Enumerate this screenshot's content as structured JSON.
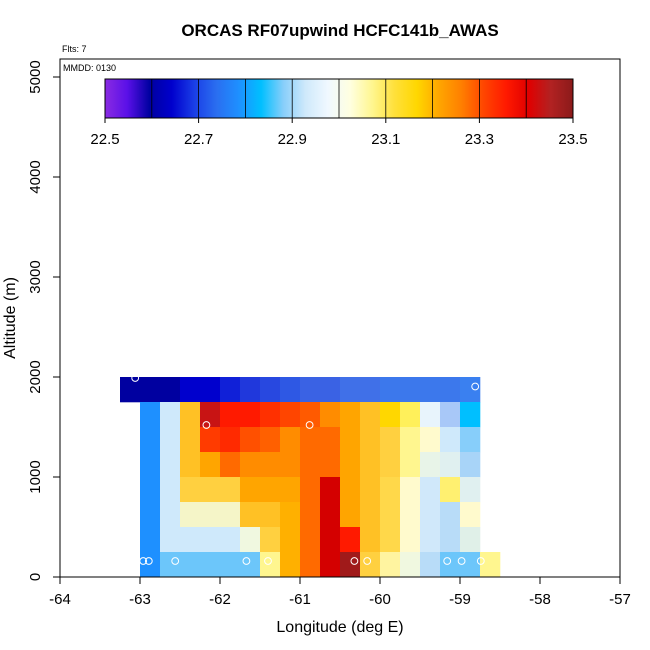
{
  "chart_data": {
    "type": "heatmap",
    "title": "ORCAS RF07upwind HCFC141b_AWAS",
    "xlabel": "Longitude (deg E)",
    "ylabel": "Altitude (m)",
    "xlim": [
      -64,
      -57
    ],
    "ylim": [
      0,
      5200
    ],
    "x_ticks": [
      -64,
      -63,
      -62,
      -61,
      -60,
      -59,
      -58,
      -57
    ],
    "y_ticks": [
      0,
      1000,
      2000,
      3000,
      4000,
      5000
    ],
    "annotations": {
      "flights": "Flts: 7",
      "date": "MMDD: 0130"
    },
    "colorbar": {
      "range": [
        22.5,
        23.5
      ],
      "ticks": [
        22.5,
        22.7,
        22.9,
        23.1,
        23.3,
        23.5
      ],
      "colors": [
        "#8a2be2",
        "#5a10e8",
        "#0000a0",
        "#0000cd",
        "#1a3ee6",
        "#2a6ef0",
        "#1e90ff",
        "#00bfff",
        "#87cefa",
        "#cfe9fb",
        "#f0f8ff",
        "#ffffe0",
        "#fff68f",
        "#ffe03a",
        "#ffd700",
        "#ffa500",
        "#ff7f00",
        "#ff4500",
        "#ff1a00",
        "#e00000",
        "#b22222",
        "#8b1a1a"
      ]
    },
    "cells": [
      {
        "x0": -63.25,
        "x1": -62.5,
        "y0": 1750,
        "y1": 2000,
        "c": "#0000a0"
      },
      {
        "x0": -62.5,
        "x1": -62.0,
        "y0": 1750,
        "y1": 2000,
        "c": "#0000cd"
      },
      {
        "x0": -62.0,
        "x1": -61.75,
        "y0": 1750,
        "y1": 2000,
        "c": "#1020d8"
      },
      {
        "x0": -61.75,
        "x1": -61.5,
        "y0": 1750,
        "y1": 2000,
        "c": "#2038dc"
      },
      {
        "x0": -61.5,
        "x1": -61.25,
        "y0": 1750,
        "y1": 2000,
        "c": "#2848e0"
      },
      {
        "x0": -61.25,
        "x1": -61.0,
        "y0": 1750,
        "y1": 2000,
        "c": "#2e58e4"
      },
      {
        "x0": -61.0,
        "x1": -60.5,
        "y0": 1750,
        "y1": 2000,
        "c": "#3a62e4"
      },
      {
        "x0": -60.5,
        "x1": -60.0,
        "y0": 1750,
        "y1": 2000,
        "c": "#4070e8"
      },
      {
        "x0": -60.0,
        "x1": -59.0,
        "y0": 1750,
        "y1": 2000,
        "c": "#3c78ec"
      },
      {
        "x0": -59.0,
        "x1": -58.75,
        "y0": 1750,
        "y1": 2000,
        "c": "#3a80f0"
      },
      {
        "x0": -63.0,
        "x1": -62.75,
        "y0": 0,
        "y1": 1750,
        "c": "#1e90ff"
      },
      {
        "x0": -62.75,
        "x1": -62.5,
        "y0": 1500,
        "y1": 1750,
        "c": "#cfe9fb"
      },
      {
        "x0": -62.75,
        "x1": -62.5,
        "y0": 250,
        "y1": 1500,
        "c": "#cfe9fb"
      },
      {
        "x0": -62.75,
        "x1": -62.5,
        "y0": 0,
        "y1": 250,
        "c": "#6cc6fa"
      },
      {
        "x0": -62.5,
        "x1": -62.25,
        "y0": 1000,
        "y1": 1750,
        "c": "#ffc125"
      },
      {
        "x0": -62.5,
        "x1": -62.25,
        "y0": 750,
        "y1": 1000,
        "c": "#ffd040"
      },
      {
        "x0": -62.5,
        "x1": -62.25,
        "y0": 500,
        "y1": 750,
        "c": "#f5f5c8"
      },
      {
        "x0": -62.5,
        "x1": -62.25,
        "y0": 250,
        "y1": 500,
        "c": "#cfe9fb"
      },
      {
        "x0": -62.5,
        "x1": -62.25,
        "y0": 0,
        "y1": 250,
        "c": "#6cc6fa"
      },
      {
        "x0": -62.25,
        "x1": -62.0,
        "y0": 1500,
        "y1": 1750,
        "c": "#c81414"
      },
      {
        "x0": -62.25,
        "x1": -62.0,
        "y0": 1250,
        "y1": 1500,
        "c": "#ff3b00"
      },
      {
        "x0": -62.25,
        "x1": -62.0,
        "y0": 1000,
        "y1": 1250,
        "c": "#ffa500"
      },
      {
        "x0": -62.25,
        "x1": -62.0,
        "y0": 750,
        "y1": 1000,
        "c": "#ffd040"
      },
      {
        "x0": -62.25,
        "x1": -62.0,
        "y0": 500,
        "y1": 750,
        "c": "#f5f5c8"
      },
      {
        "x0": -62.25,
        "x1": -62.0,
        "y0": 250,
        "y1": 500,
        "c": "#cfe9fb"
      },
      {
        "x0": -62.25,
        "x1": -62.0,
        "y0": 0,
        "y1": 250,
        "c": "#6cc6fa"
      },
      {
        "x0": -62.0,
        "x1": -61.75,
        "y0": 1500,
        "y1": 1750,
        "c": "#ff1a00"
      },
      {
        "x0": -62.0,
        "x1": -61.75,
        "y0": 1250,
        "y1": 1500,
        "c": "#ff2a00"
      },
      {
        "x0": -62.0,
        "x1": -61.75,
        "y0": 1000,
        "y1": 1250,
        "c": "#ff6a00"
      },
      {
        "x0": -62.0,
        "x1": -61.75,
        "y0": 750,
        "y1": 1000,
        "c": "#ffd040"
      },
      {
        "x0": -62.0,
        "x1": -61.75,
        "y0": 500,
        "y1": 750,
        "c": "#f5f5c8"
      },
      {
        "x0": -62.0,
        "x1": -61.75,
        "y0": 250,
        "y1": 500,
        "c": "#cfe9fb"
      },
      {
        "x0": -62.0,
        "x1": -61.75,
        "y0": 0,
        "y1": 250,
        "c": "#6cc6fa"
      },
      {
        "x0": -61.75,
        "x1": -61.5,
        "y0": 1500,
        "y1": 1750,
        "c": "#ff1a00"
      },
      {
        "x0": -61.75,
        "x1": -61.5,
        "y0": 1250,
        "y1": 1500,
        "c": "#ff5000"
      },
      {
        "x0": -61.75,
        "x1": -61.5,
        "y0": 1000,
        "y1": 1250,
        "c": "#ff8c00"
      },
      {
        "x0": -61.75,
        "x1": -61.5,
        "y0": 750,
        "y1": 1000,
        "c": "#ffa500"
      },
      {
        "x0": -61.75,
        "x1": -61.5,
        "y0": 500,
        "y1": 750,
        "c": "#ffc125"
      },
      {
        "x0": -61.75,
        "x1": -61.5,
        "y0": 250,
        "y1": 500,
        "c": "#f0f8e0"
      },
      {
        "x0": -61.75,
        "x1": -61.5,
        "y0": 0,
        "y1": 250,
        "c": "#6cc6fa"
      },
      {
        "x0": -61.5,
        "x1": -61.25,
        "y0": 1500,
        "y1": 1750,
        "c": "#ff3000"
      },
      {
        "x0": -61.5,
        "x1": -61.25,
        "y0": 1250,
        "y1": 1500,
        "c": "#ff6000"
      },
      {
        "x0": -61.5,
        "x1": -61.25,
        "y0": 1000,
        "y1": 1250,
        "c": "#ff8c00"
      },
      {
        "x0": -61.5,
        "x1": -61.25,
        "y0": 750,
        "y1": 1000,
        "c": "#ffa500"
      },
      {
        "x0": -61.5,
        "x1": -61.25,
        "y0": 500,
        "y1": 750,
        "c": "#ffc125"
      },
      {
        "x0": -61.5,
        "x1": -61.25,
        "y0": 250,
        "y1": 500,
        "c": "#ffd040"
      },
      {
        "x0": -61.5,
        "x1": -61.25,
        "y0": 0,
        "y1": 250,
        "c": "#fff68f"
      },
      {
        "x0": -61.25,
        "x1": -61.0,
        "y0": 1500,
        "y1": 1750,
        "c": "#ff4500"
      },
      {
        "x0": -61.25,
        "x1": -61.0,
        "y0": 1250,
        "y1": 1500,
        "c": "#ff8c00"
      },
      {
        "x0": -61.25,
        "x1": -61.0,
        "y0": 1000,
        "y1": 1250,
        "c": "#ff8c00"
      },
      {
        "x0": -61.25,
        "x1": -61.0,
        "y0": 750,
        "y1": 1000,
        "c": "#ffa500"
      },
      {
        "x0": -61.25,
        "x1": -61.0,
        "y0": 0,
        "y1": 750,
        "c": "#ffb000"
      },
      {
        "x0": -61.0,
        "x1": -60.75,
        "y0": 1500,
        "y1": 1750,
        "c": "#ff5a00"
      },
      {
        "x0": -61.0,
        "x1": -60.75,
        "y0": 0,
        "y1": 1500,
        "c": "#ff6a00"
      },
      {
        "x0": -60.75,
        "x1": -60.5,
        "y0": 1500,
        "y1": 1750,
        "c": "#ff8c00"
      },
      {
        "x0": -60.75,
        "x1": -60.5,
        "y0": 1000,
        "y1": 1500,
        "c": "#ff6a00"
      },
      {
        "x0": -60.75,
        "x1": -60.5,
        "y0": 0,
        "y1": 1000,
        "c": "#d40000"
      },
      {
        "x0": -60.5,
        "x1": -60.25,
        "y0": 1500,
        "y1": 1750,
        "c": "#ffa500"
      },
      {
        "x0": -60.5,
        "x1": -60.25,
        "y0": 500,
        "y1": 1500,
        "c": "#ffa500"
      },
      {
        "x0": -60.5,
        "x1": -60.25,
        "y0": 250,
        "y1": 500,
        "c": "#ff1a00"
      },
      {
        "x0": -60.5,
        "x1": -60.25,
        "y0": 0,
        "y1": 250,
        "c": "#a01a1a"
      },
      {
        "x0": -60.25,
        "x1": -60.0,
        "y0": 1000,
        "y1": 1750,
        "c": "#ffc125"
      },
      {
        "x0": -60.25,
        "x1": -60.0,
        "y0": 250,
        "y1": 1000,
        "c": "#ffc125"
      },
      {
        "x0": -60.25,
        "x1": -60.0,
        "y0": 0,
        "y1": 250,
        "c": "#ffd040"
      },
      {
        "x0": -60.0,
        "x1": -59.75,
        "y0": 1500,
        "y1": 1750,
        "c": "#ffd700"
      },
      {
        "x0": -60.0,
        "x1": -59.75,
        "y0": 1000,
        "y1": 1500,
        "c": "#ffd040"
      },
      {
        "x0": -60.0,
        "x1": -59.75,
        "y0": 250,
        "y1": 1000,
        "c": "#ffd84a"
      },
      {
        "x0": -60.0,
        "x1": -59.75,
        "y0": 0,
        "y1": 250,
        "c": "#fff4a0"
      },
      {
        "x0": -59.75,
        "x1": -59.5,
        "y0": 1500,
        "y1": 1750,
        "c": "#fff05a"
      },
      {
        "x0": -59.75,
        "x1": -59.5,
        "y0": 1000,
        "y1": 1500,
        "c": "#fff68f"
      },
      {
        "x0": -59.75,
        "x1": -59.5,
        "y0": 250,
        "y1": 1000,
        "c": "#fffacd"
      },
      {
        "x0": -59.75,
        "x1": -59.5,
        "y0": 0,
        "y1": 250,
        "c": "#f0f8e0"
      },
      {
        "x0": -59.5,
        "x1": -59.25,
        "y0": 1500,
        "y1": 1750,
        "c": "#e8f4fc"
      },
      {
        "x0": -59.5,
        "x1": -59.25,
        "y0": 1250,
        "y1": 1500,
        "c": "#fffacd"
      },
      {
        "x0": -59.5,
        "x1": -59.25,
        "y0": 1000,
        "y1": 1250,
        "c": "#e8f4e8"
      },
      {
        "x0": -59.5,
        "x1": -59.25,
        "y0": 250,
        "y1": 1000,
        "c": "#d0e8fa"
      },
      {
        "x0": -59.5,
        "x1": -59.25,
        "y0": 0,
        "y1": 250,
        "c": "#b8dcf8"
      },
      {
        "x0": -59.25,
        "x1": -59.0,
        "y0": 1500,
        "y1": 1750,
        "c": "#a8c8f8"
      },
      {
        "x0": -59.25,
        "x1": -59.0,
        "y0": 1250,
        "y1": 1500,
        "c": "#cfe9fb"
      },
      {
        "x0": -59.25,
        "x1": -59.0,
        "y0": 1000,
        "y1": 1250,
        "c": "#e0f0f0"
      },
      {
        "x0": -59.25,
        "x1": -59.0,
        "y0": 750,
        "y1": 1000,
        "c": "#fff070"
      },
      {
        "x0": -59.25,
        "x1": -59.0,
        "y0": 250,
        "y1": 750,
        "c": "#b8dcf8"
      },
      {
        "x0": -59.25,
        "x1": -59.0,
        "y0": 0,
        "y1": 250,
        "c": "#6cc6fa"
      },
      {
        "x0": -59.0,
        "x1": -58.75,
        "y0": 1500,
        "y1": 1750,
        "c": "#00bfff"
      },
      {
        "x0": -59.0,
        "x1": -58.75,
        "y0": 1250,
        "y1": 1500,
        "c": "#87cefa"
      },
      {
        "x0": -59.0,
        "x1": -58.75,
        "y0": 1000,
        "y1": 1250,
        "c": "#a8d4f8"
      },
      {
        "x0": -59.0,
        "x1": -58.75,
        "y0": 750,
        "y1": 1000,
        "c": "#e0f0f0"
      },
      {
        "x0": -59.0,
        "x1": -58.75,
        "y0": 500,
        "y1": 750,
        "c": "#fffacd"
      },
      {
        "x0": -59.0,
        "x1": -58.75,
        "y0": 250,
        "y1": 500,
        "c": "#e0f0e8"
      },
      {
        "x0": -59.0,
        "x1": -58.75,
        "y0": 0,
        "y1": 250,
        "c": "#6cc6fa"
      },
      {
        "x0": -58.75,
        "x1": -58.5,
        "y0": 0,
        "y1": 250,
        "c": "#fff68f"
      }
    ],
    "sample_points": [
      {
        "x": -63.06,
        "y": 1990
      },
      {
        "x": -58.81,
        "y": 1905
      },
      {
        "x": -62.17,
        "y": 1520
      },
      {
        "x": -60.88,
        "y": 1520
      },
      {
        "x": -62.96,
        "y": 160
      },
      {
        "x": -62.89,
        "y": 160
      },
      {
        "x": -62.56,
        "y": 160
      },
      {
        "x": -61.67,
        "y": 160
      },
      {
        "x": -61.4,
        "y": 160
      },
      {
        "x": -60.32,
        "y": 160
      },
      {
        "x": -60.16,
        "y": 160
      },
      {
        "x": -59.16,
        "y": 160
      },
      {
        "x": -58.98,
        "y": 160
      },
      {
        "x": -58.74,
        "y": 160
      }
    ]
  }
}
